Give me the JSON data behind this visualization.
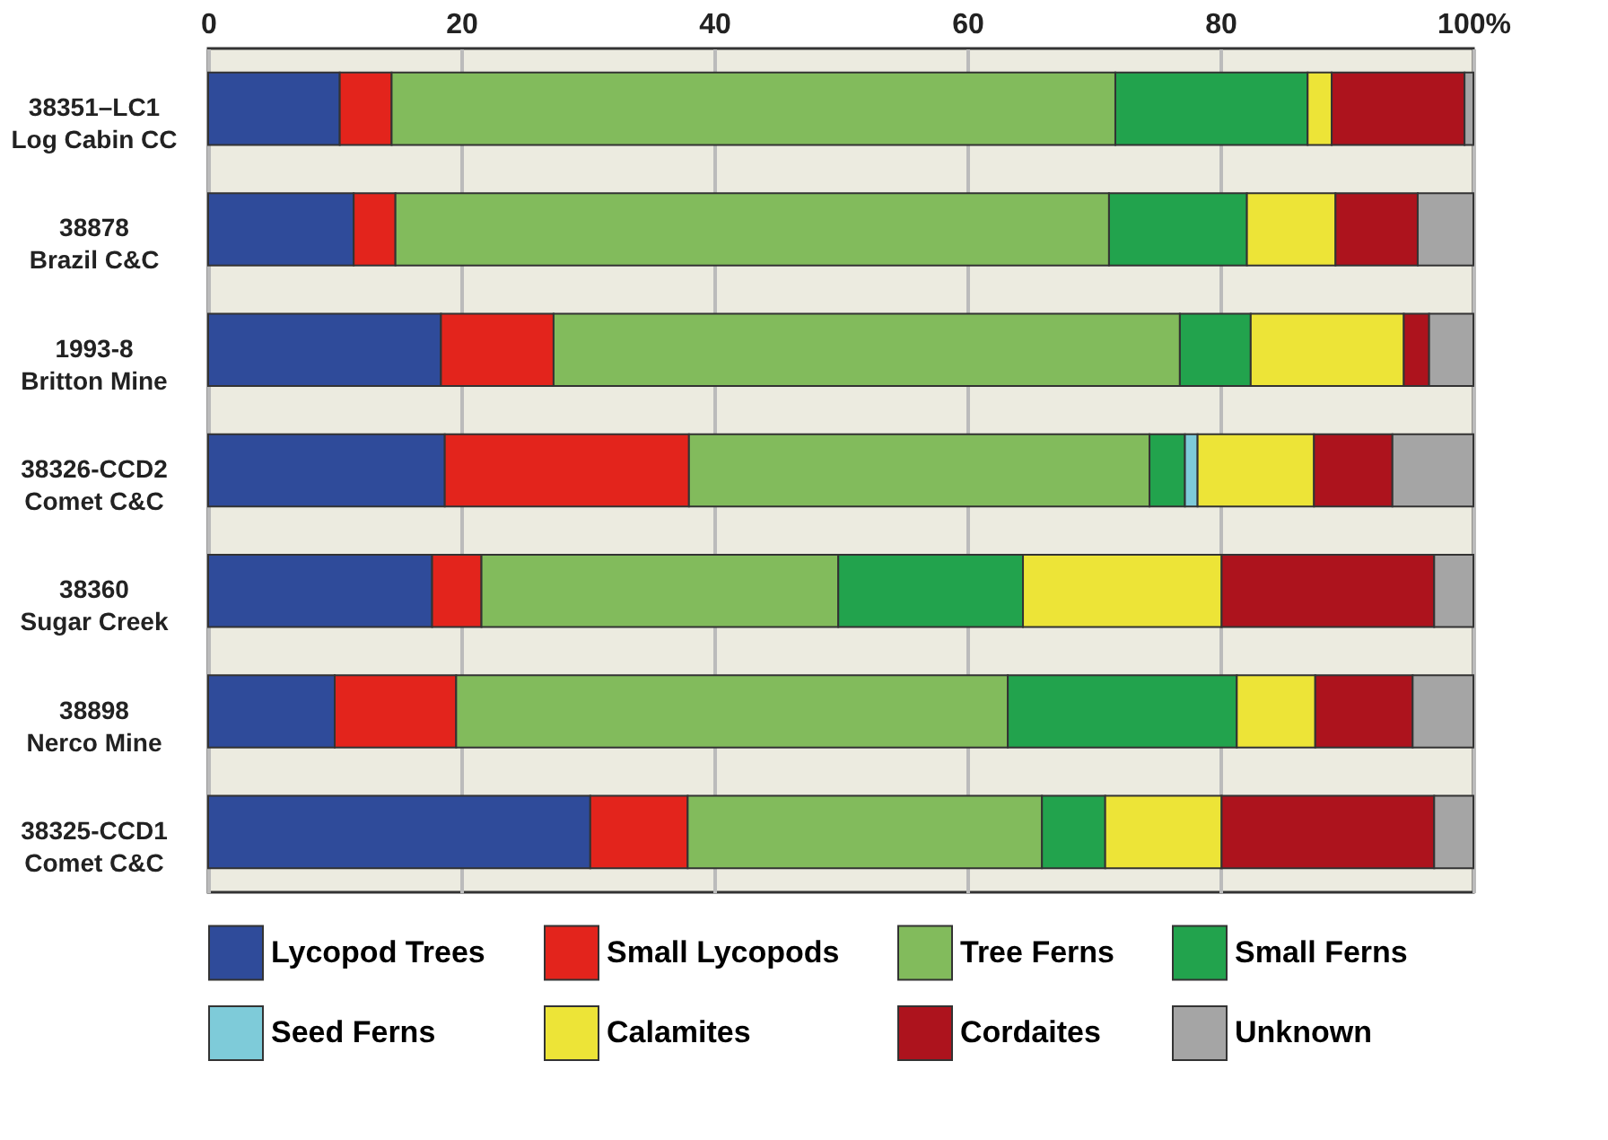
{
  "chart_data": {
    "type": "bar",
    "orientation": "horizontal",
    "stacked": true,
    "categories": [
      "38351–LC1\nLog Cabin CC",
      "38878\nBrazil C&C",
      "1993-8\nBritton Mine",
      "38326-CCD2\nComet C&C",
      "38360\nSugar Creek",
      "38898\nNerco Mine",
      "38325-CCD1\nComet C&C"
    ],
    "series": [
      {
        "name": "Lycopod Trees",
        "color": "#2f4b9a",
        "values": [
          10.4,
          11.5,
          18.4,
          18.7,
          17.7,
          10.0,
          30.2
        ]
      },
      {
        "name": "Small Lycopods",
        "color": "#e3241c",
        "values": [
          4.1,
          3.3,
          8.9,
          19.3,
          3.9,
          9.6,
          7.7
        ]
      },
      {
        "name": "Tree Ferns",
        "color": "#82bb5c",
        "values": [
          57.2,
          56.4,
          49.5,
          36.4,
          28.2,
          43.6,
          28.0
        ]
      },
      {
        "name": "Small Ferns",
        "color": "#22a34d",
        "values": [
          15.2,
          10.9,
          5.6,
          2.8,
          14.6,
          18.1,
          5.0
        ]
      },
      {
        "name": "Seed Ferns",
        "color": "#7ecbd9",
        "values": [
          null,
          null,
          null,
          1.0,
          null,
          null,
          null
        ]
      },
      {
        "name": "Calamites",
        "color": "#ede437",
        "values": [
          1.9,
          7.0,
          12.1,
          9.2,
          15.7,
          6.2,
          9.2
        ]
      },
      {
        "name": "Cordaites",
        "color": "#ad131d",
        "values": [
          10.5,
          6.5,
          2.0,
          6.2,
          16.8,
          7.7,
          16.8
        ]
      },
      {
        "name": "Unknown",
        "color": "#a5a5a5",
        "values": [
          0.7,
          4.4,
          3.5,
          6.4,
          3.1,
          4.8,
          3.1
        ]
      }
    ],
    "xlim": [
      0,
      100
    ],
    "xticks": [
      0,
      20,
      40,
      60,
      80,
      {
        "value": 100,
        "label": "100%"
      }
    ],
    "grid": "x",
    "legend": "bottom"
  }
}
